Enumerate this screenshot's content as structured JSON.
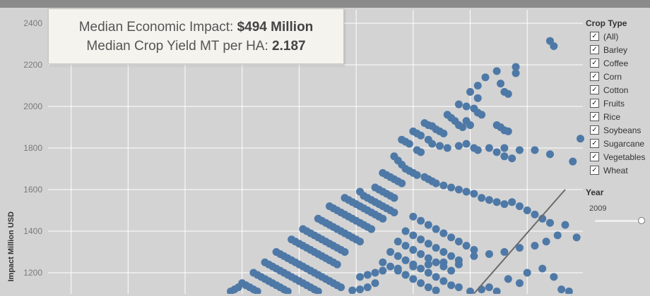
{
  "summary": {
    "impact_label": "Median Economic Impact:",
    "impact_value": "$494 Million",
    "yield_label": "Median Crop Yield MT per HA:",
    "yield_value": "2.187"
  },
  "filter": {
    "title": "Crop Type",
    "items": [
      {
        "label": "(All)",
        "checked": true
      },
      {
        "label": "Barley",
        "checked": true
      },
      {
        "label": "Coffee",
        "checked": true
      },
      {
        "label": "Corn",
        "checked": true
      },
      {
        "label": "Cotton",
        "checked": true
      },
      {
        "label": "Fruits",
        "checked": true
      },
      {
        "label": "Rice",
        "checked": true
      },
      {
        "label": "Soybeans",
        "checked": true
      },
      {
        "label": "Sugarcane",
        "checked": true
      },
      {
        "label": "Vegetables",
        "checked": true
      },
      {
        "label": "Wheat",
        "checked": true
      }
    ]
  },
  "year_filter": {
    "title": "Year",
    "value": "2009",
    "slider_fraction": 1.0
  },
  "colors": {
    "background": "#d3d3d3",
    "points": "#4e79a7",
    "trend_line": "#6b6b6b",
    "grid": "#ffffff"
  },
  "chart_data": {
    "type": "scatter",
    "title": "",
    "xlabel": "",
    "ylabel": "Impact Million USD",
    "yticks": [
      1200,
      1400,
      1600,
      1800,
      2000,
      2200,
      2400
    ],
    "ylim": [
      1100,
      2450
    ],
    "xlim": [
      0,
      100
    ],
    "grid": true,
    "legend": "none",
    "trend_line": [
      [
        76,
        1100
      ],
      [
        100,
        1600
      ]
    ],
    "points": [
      [
        96,
        2315
      ],
      [
        97,
        2290
      ],
      [
        87,
        2190
      ],
      [
        82,
        2170
      ],
      [
        79,
        2140
      ],
      [
        87,
        2160
      ],
      [
        83,
        2110
      ],
      [
        84,
        2070
      ],
      [
        85,
        2060
      ],
      [
        77,
        2100
      ],
      [
        75,
        2070
      ],
      [
        77,
        2040
      ],
      [
        104,
        1845
      ],
      [
        72,
        2010
      ],
      [
        74,
        2000
      ],
      [
        76,
        1990
      ],
      [
        77,
        1970
      ],
      [
        78,
        1960
      ],
      [
        74,
        1930
      ],
      [
        75,
        1910
      ],
      [
        82,
        1910
      ],
      [
        83,
        1900
      ],
      [
        84,
        1885
      ],
      [
        85,
        1880
      ],
      [
        69,
        1960
      ],
      [
        70,
        1945
      ],
      [
        71,
        1930
      ],
      [
        72,
        1910
      ],
      [
        73,
        1900
      ],
      [
        66,
        1890
      ],
      [
        67,
        1880
      ],
      [
        68,
        1870
      ],
      [
        63,
        1920
      ],
      [
        64,
        1910
      ],
      [
        65,
        1905
      ],
      [
        60,
        1880
      ],
      [
        61,
        1870
      ],
      [
        62,
        1860
      ],
      [
        57,
        1840
      ],
      [
        58,
        1830
      ],
      [
        59,
        1820
      ],
      [
        61,
        1790
      ],
      [
        62,
        1780
      ],
      [
        64,
        1840
      ],
      [
        65,
        1820
      ],
      [
        67,
        1810
      ],
      [
        69,
        1800
      ],
      [
        72,
        1810
      ],
      [
        74,
        1820
      ],
      [
        76,
        1800
      ],
      [
        77,
        1790
      ],
      [
        80,
        1800
      ],
      [
        84,
        1800
      ],
      [
        88,
        1790
      ],
      [
        82,
        1780
      ],
      [
        84,
        1760
      ],
      [
        86,
        1750
      ],
      [
        92,
        1790
      ],
      [
        96,
        1770
      ],
      [
        102,
        1735
      ],
      [
        55,
        1760
      ],
      [
        56,
        1740
      ],
      [
        57,
        1720
      ],
      [
        58,
        1700
      ],
      [
        59,
        1690
      ],
      [
        60,
        1680
      ],
      [
        61,
        1670
      ],
      [
        63,
        1660
      ],
      [
        64,
        1650
      ],
      [
        65,
        1640
      ],
      [
        66,
        1630
      ],
      [
        68,
        1620
      ],
      [
        70,
        1610
      ],
      [
        72,
        1600
      ],
      [
        74,
        1590
      ],
      [
        76,
        1580
      ],
      [
        78,
        1560
      ],
      [
        80,
        1550
      ],
      [
        82,
        1540
      ],
      [
        84,
        1530
      ],
      [
        86,
        1540
      ],
      [
        88,
        1520
      ],
      [
        90,
        1500
      ],
      [
        92,
        1480
      ],
      [
        94,
        1460
      ],
      [
        96,
        1440
      ],
      [
        100,
        1430
      ],
      [
        103,
        1370
      ],
      [
        98,
        1380
      ],
      [
        95,
        1350
      ],
      [
        92,
        1330
      ],
      [
        88,
        1320
      ],
      [
        84,
        1300
      ],
      [
        80,
        1290
      ],
      [
        76,
        1280
      ],
      [
        72,
        1260
      ],
      [
        68,
        1250
      ],
      [
        64,
        1240
      ],
      [
        60,
        1230
      ],
      [
        56,
        1220
      ],
      [
        52,
        1210
      ],
      [
        50,
        1200
      ],
      [
        48,
        1190
      ],
      [
        46,
        1180
      ],
      [
        52,
        1680
      ],
      [
        53,
        1670
      ],
      [
        54,
        1660
      ],
      [
        55,
        1650
      ],
      [
        56,
        1640
      ],
      [
        57,
        1630
      ],
      [
        50,
        1610
      ],
      [
        51,
        1600
      ],
      [
        52,
        1590
      ],
      [
        53,
        1580
      ],
      [
        54,
        1570
      ],
      [
        55,
        1560
      ],
      [
        46,
        1590
      ],
      [
        47,
        1570
      ],
      [
        48,
        1560
      ],
      [
        49,
        1550
      ],
      [
        50,
        1540
      ],
      [
        51,
        1530
      ],
      [
        52,
        1520
      ],
      [
        53,
        1510
      ],
      [
        54,
        1500
      ],
      [
        55,
        1490
      ],
      [
        42,
        1560
      ],
      [
        43,
        1550
      ],
      [
        44,
        1540
      ],
      [
        45,
        1530
      ],
      [
        46,
        1520
      ],
      [
        47,
        1510
      ],
      [
        48,
        1500
      ],
      [
        49,
        1490
      ],
      [
        50,
        1480
      ],
      [
        51,
        1470
      ],
      [
        52,
        1460
      ],
      [
        38,
        1520
      ],
      [
        39,
        1510
      ],
      [
        40,
        1500
      ],
      [
        41,
        1490
      ],
      [
        42,
        1480
      ],
      [
        43,
        1470
      ],
      [
        44,
        1460
      ],
      [
        45,
        1450
      ],
      [
        46,
        1440
      ],
      [
        47,
        1430
      ],
      [
        48,
        1420
      ],
      [
        49,
        1410
      ],
      [
        35,
        1460
      ],
      [
        36,
        1450
      ],
      [
        37,
        1440
      ],
      [
        38,
        1430
      ],
      [
        39,
        1420
      ],
      [
        40,
        1410
      ],
      [
        41,
        1400
      ],
      [
        42,
        1390
      ],
      [
        43,
        1380
      ],
      [
        44,
        1370
      ],
      [
        45,
        1360
      ],
      [
        46,
        1350
      ],
      [
        31,
        1410
      ],
      [
        32,
        1400
      ],
      [
        33,
        1390
      ],
      [
        34,
        1380
      ],
      [
        35,
        1370
      ],
      [
        36,
        1360
      ],
      [
        37,
        1350
      ],
      [
        38,
        1340
      ],
      [
        39,
        1330
      ],
      [
        40,
        1320
      ],
      [
        41,
        1310
      ],
      [
        42,
        1300
      ],
      [
        28,
        1360
      ],
      [
        29,
        1350
      ],
      [
        30,
        1340
      ],
      [
        31,
        1330
      ],
      [
        32,
        1320
      ],
      [
        33,
        1310
      ],
      [
        34,
        1300
      ],
      [
        35,
        1290
      ],
      [
        36,
        1280
      ],
      [
        37,
        1270
      ],
      [
        38,
        1260
      ],
      [
        39,
        1250
      ],
      [
        40,
        1240
      ],
      [
        24,
        1300
      ],
      [
        25,
        1290
      ],
      [
        26,
        1280
      ],
      [
        27,
        1270
      ],
      [
        28,
        1260
      ],
      [
        29,
        1250
      ],
      [
        30,
        1240
      ],
      [
        31,
        1230
      ],
      [
        32,
        1220
      ],
      [
        33,
        1210
      ],
      [
        34,
        1200
      ],
      [
        35,
        1190
      ],
      [
        36,
        1180
      ],
      [
        37,
        1170
      ],
      [
        38,
        1160
      ],
      [
        39,
        1150
      ],
      [
        40,
        1140
      ],
      [
        41,
        1130
      ],
      [
        21,
        1250
      ],
      [
        22,
        1240
      ],
      [
        23,
        1230
      ],
      [
        24,
        1220
      ],
      [
        25,
        1210
      ],
      [
        26,
        1200
      ],
      [
        27,
        1190
      ],
      [
        28,
        1180
      ],
      [
        29,
        1170
      ],
      [
        30,
        1160
      ],
      [
        31,
        1150
      ],
      [
        32,
        1140
      ],
      [
        33,
        1130
      ],
      [
        34,
        1120
      ],
      [
        35,
        1110
      ],
      [
        18,
        1200
      ],
      [
        19,
        1190
      ],
      [
        20,
        1180
      ],
      [
        21,
        1170
      ],
      [
        22,
        1160
      ],
      [
        23,
        1150
      ],
      [
        24,
        1140
      ],
      [
        25,
        1130
      ],
      [
        26,
        1120
      ],
      [
        27,
        1110
      ],
      [
        15,
        1150
      ],
      [
        16,
        1140
      ],
      [
        17,
        1130
      ],
      [
        18,
        1120
      ],
      [
        19,
        1110
      ],
      [
        14,
        1130
      ],
      [
        13,
        1120
      ],
      [
        12,
        1110
      ],
      [
        60,
        1470
      ],
      [
        62,
        1450
      ],
      [
        64,
        1430
      ],
      [
        66,
        1410
      ],
      [
        68,
        1390
      ],
      [
        70,
        1370
      ],
      [
        72,
        1350
      ],
      [
        74,
        1330
      ],
      [
        76,
        1310
      ],
      [
        58,
        1400
      ],
      [
        60,
        1380
      ],
      [
        62,
        1360
      ],
      [
        64,
        1340
      ],
      [
        66,
        1320
      ],
      [
        68,
        1300
      ],
      [
        70,
        1280
      ],
      [
        72,
        1240
      ],
      [
        56,
        1350
      ],
      [
        58,
        1330
      ],
      [
        60,
        1310
      ],
      [
        62,
        1290
      ],
      [
        64,
        1270
      ],
      [
        66,
        1250
      ],
      [
        68,
        1230
      ],
      [
        70,
        1210
      ],
      [
        54,
        1300
      ],
      [
        56,
        1280
      ],
      [
        58,
        1260
      ],
      [
        60,
        1240
      ],
      [
        62,
        1220
      ],
      [
        64,
        1200
      ],
      [
        66,
        1180
      ],
      [
        68,
        1160
      ],
      [
        70,
        1140
      ],
      [
        72,
        1130
      ],
      [
        52,
        1250
      ],
      [
        54,
        1230
      ],
      [
        56,
        1210
      ],
      [
        58,
        1190
      ],
      [
        60,
        1170
      ],
      [
        62,
        1150
      ],
      [
        64,
        1130
      ],
      [
        66,
        1115
      ],
      [
        50,
        1150
      ],
      [
        48,
        1130
      ],
      [
        46,
        1120
      ],
      [
        44,
        1115
      ],
      [
        75,
        1110
      ],
      [
        78,
        1120
      ],
      [
        80,
        1130
      ],
      [
        82,
        1110
      ],
      [
        85,
        1170
      ],
      [
        88,
        1150
      ],
      [
        90,
        1200
      ],
      [
        94,
        1220
      ],
      [
        97,
        1180
      ],
      [
        99,
        1120
      ],
      [
        101,
        1110
      ]
    ]
  }
}
